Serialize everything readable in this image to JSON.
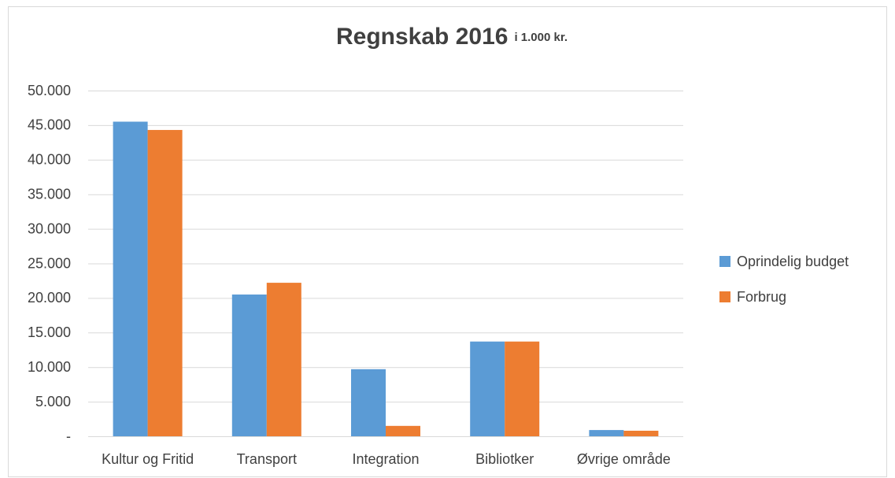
{
  "chart_data": {
    "type": "bar",
    "title": "Regnskab 2016",
    "subtitle": "i 1.000 kr.",
    "categories": [
      "Kultur og Fritid",
      "Transport",
      "Integration",
      "Bibliotker",
      "Øvrige område"
    ],
    "series": [
      {
        "name": "Oprindelig budget",
        "color": "#5b9bd5",
        "values": [
          45500,
          20500,
          9700,
          13700,
          900
        ]
      },
      {
        "name": "Forbrug",
        "color": "#ed7d31",
        "values": [
          44300,
          22200,
          1500,
          13700,
          800
        ]
      }
    ],
    "ylim": [
      0,
      50000
    ],
    "yticks": [
      {
        "value": 0,
        "label": "-"
      },
      {
        "value": 5000,
        "label": "5.000"
      },
      {
        "value": 10000,
        "label": "10.000"
      },
      {
        "value": 15000,
        "label": "15.000"
      },
      {
        "value": 20000,
        "label": "20.000"
      },
      {
        "value": 25000,
        "label": "25.000"
      },
      {
        "value": 30000,
        "label": "30.000"
      },
      {
        "value": 35000,
        "label": "35.000"
      },
      {
        "value": 40000,
        "label": "40.000"
      },
      {
        "value": 45000,
        "label": "45.000"
      },
      {
        "value": 50000,
        "label": "50.000"
      }
    ],
    "grid": true,
    "legend": "right"
  }
}
